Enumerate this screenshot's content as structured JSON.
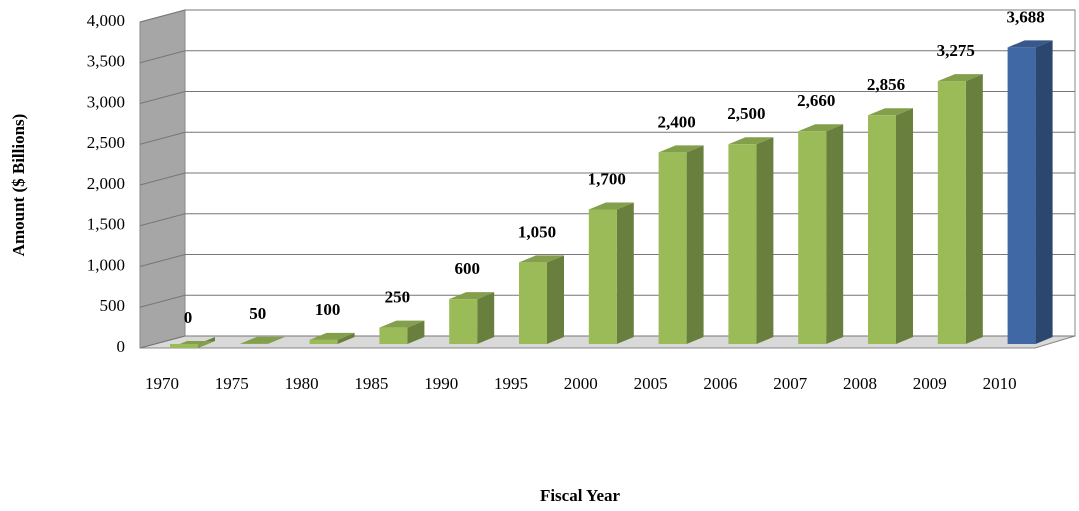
{
  "chart_data": {
    "type": "bar3d",
    "x_label": "Fiscal Year",
    "y_label": "Amount ($ Billions)",
    "categories": [
      "1970",
      "1975",
      "1980",
      "1985",
      "1990",
      "1995",
      "2000",
      "2005",
      "2006",
      "2007",
      "2008",
      "2009",
      "2010"
    ],
    "values": [
      0,
      50,
      100,
      250,
      600,
      1050,
      1700,
      2400,
      2500,
      2660,
      2856,
      3275,
      3688
    ],
    "value_labels": [
      "0",
      "50",
      "100",
      "250",
      "600",
      "1,050",
      "1,700",
      "2,400",
      "2,500",
      "2,660",
      "2,856",
      "3,275",
      "3,688"
    ],
    "colors": [
      "#9bbb59",
      "#9bbb59",
      "#9bbb59",
      "#9bbb59",
      "#9bbb59",
      "#9bbb59",
      "#9bbb59",
      "#9bbb59",
      "#9bbb59",
      "#9bbb59",
      "#9bbb59",
      "#9bbb59",
      "#3f68a4"
    ],
    "ylim": [
      0,
      4000
    ],
    "yticks": [
      0,
      500,
      {
        "value": 1000,
        "label": "1,000"
      },
      {
        "value": 1500,
        "label": "1,500"
      },
      {
        "value": 2000,
        "label": "2,000"
      },
      {
        "value": 2500,
        "label": "2,500"
      },
      {
        "value": 3000,
        "label": "3,000"
      },
      {
        "value": 3500,
        "label": "3,500"
      },
      {
        "value": 4000,
        "label": "4,000"
      }
    ],
    "grid": true
  }
}
